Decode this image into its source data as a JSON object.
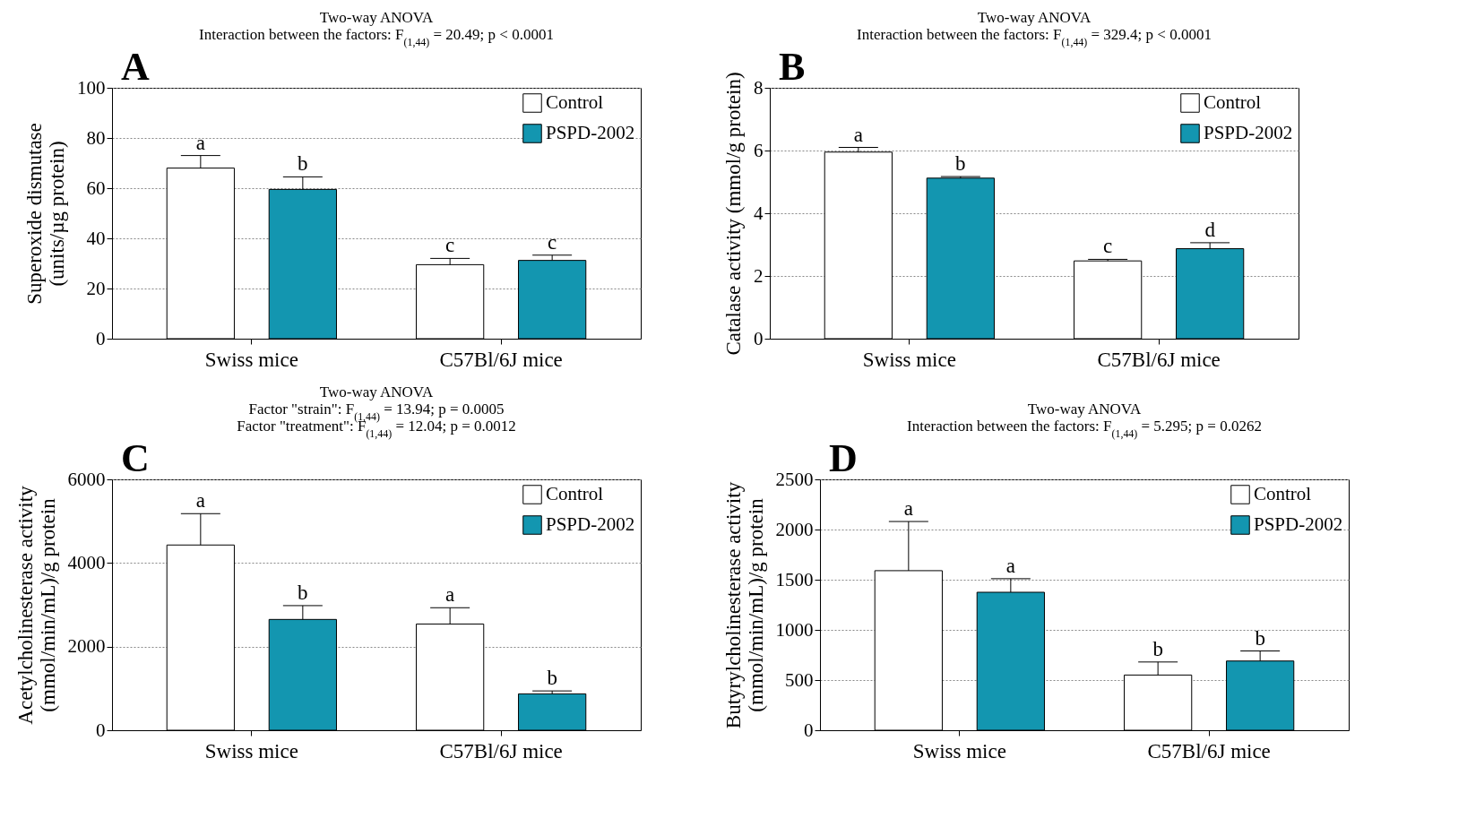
{
  "chart_data": [
    {
      "type": "bar",
      "title": "Two-way ANOVA",
      "subtitle": "Interaction between the factors: F$_{(1,44)}$ = 20.49; p < 0.0001",
      "ylabel": "Superoxide dismutase\n(units/µg protein)",
      "annotations": [
        "A"
      ],
      "categories": [
        "Swiss mice",
        "C57Bl/6J mice"
      ],
      "ylim": [
        0,
        100
      ],
      "yticks": [
        0,
        20,
        40,
        60,
        80,
        100
      ],
      "grid": "y",
      "legend": "top right",
      "series": [
        {
          "name": "Control",
          "color": "#ffffff",
          "values": [
            68,
            29.5
          ],
          "errors": [
            [
              68,
              73
            ],
            [
              29.5,
              32
            ]
          ],
          "value_labels": [
            "a",
            "c"
          ]
        },
        {
          "name": "PSPD-2002",
          "color": "#1396b0",
          "values": [
            59.5,
            31.2
          ],
          "errors": [
            [
              59.5,
              64.5
            ],
            [
              31.2,
              33.3
            ]
          ],
          "value_labels": [
            "b",
            "c"
          ]
        }
      ]
    },
    {
      "type": "bar",
      "title": "Two-way ANOVA",
      "subtitle": "Interaction between the factors: F$_{(1,44)}$ = 329.4; p < 0.0001",
      "ylabel": "Catalase activity (mmol/g protein)",
      "annotations": [
        "B"
      ],
      "categories": [
        "Swiss mice",
        "C57Bl/6J mice"
      ],
      "ylim": [
        0,
        8
      ],
      "yticks": [
        0,
        2,
        4,
        6,
        8
      ],
      "grid": "y",
      "legend": "top right",
      "series": [
        {
          "name": "Control",
          "color": "#ffffff",
          "values": [
            5.95,
            2.48
          ],
          "errors": [
            [
              5.95,
              6.1
            ],
            [
              2.48,
              2.53
            ]
          ],
          "value_labels": [
            "a",
            "c"
          ]
        },
        {
          "name": "PSPD-2002",
          "color": "#1396b0",
          "values": [
            5.12,
            2.87
          ],
          "errors": [
            [
              5.12,
              5.17
            ],
            [
              2.87,
              3.06
            ]
          ],
          "value_labels": [
            "b",
            "d"
          ]
        }
      ]
    },
    {
      "type": "bar",
      "title": "Two-way ANOVA",
      "subtitle": "Factor \"strain\": F$_{(1,44)}$ = 13.94; p = 0.0005\nFactor \"treatment\": F$_{(1,44)}$ = 12.04; p = 0.0012",
      "ylabel": "Acetylcholinesterase activity\n(mmol/min/mL)/g protein",
      "annotations": [
        "C"
      ],
      "categories": [
        "Swiss mice",
        "C57Bl/6J mice"
      ],
      "ylim": [
        0,
        6000
      ],
      "yticks": [
        0,
        2000,
        4000,
        6000
      ],
      "grid": "y",
      "legend": "top right",
      "series": [
        {
          "name": "Control",
          "color": "#ffffff",
          "values": [
            4430,
            2540
          ],
          "errors": [
            [
              4430,
              5180
            ],
            [
              2540,
              2930
            ]
          ],
          "value_labels": [
            "a",
            "a"
          ]
        },
        {
          "name": "PSPD-2002",
          "color": "#1396b0",
          "values": [
            2650,
            870
          ],
          "errors": [
            [
              2650,
              2980
            ],
            [
              870,
              940
            ]
          ],
          "value_labels": [
            "b",
            "b"
          ]
        }
      ]
    },
    {
      "type": "bar",
      "title": "Two-way ANOVA",
      "subtitle": "Interaction between the factors: F$_{(1,44)}$ = 5.295; p = 0.0262",
      "ylabel": "Butyrylcholinesterase activity\n(mmol/min/mL)/g protein",
      "annotations": [
        "D"
      ],
      "categories": [
        "Swiss mice",
        "C57Bl/6J mice"
      ],
      "ylim": [
        0,
        2500
      ],
      "yticks": [
        0,
        500,
        1000,
        1500,
        2000,
        2500
      ],
      "grid": "y",
      "legend": "top right",
      "series": [
        {
          "name": "Control",
          "color": "#ffffff",
          "values": [
            1590,
            550
          ],
          "errors": [
            [
              1590,
              2080
            ],
            [
              550,
              680
            ]
          ],
          "value_labels": [
            "a",
            "b"
          ]
        },
        {
          "name": "PSPD-2002",
          "color": "#1396b0",
          "values": [
            1375,
            690
          ],
          "errors": [
            [
              1375,
              1510
            ],
            [
              690,
              790
            ]
          ],
          "value_labels": [
            "a",
            "b"
          ]
        }
      ]
    }
  ]
}
